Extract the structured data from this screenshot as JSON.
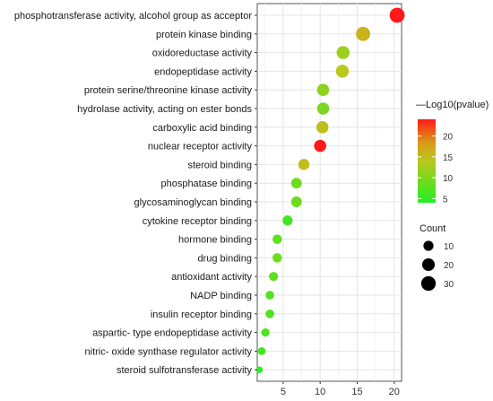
{
  "chart_data": {
    "type": "scatter",
    "xlabel": "",
    "ylabel": "",
    "xlim": [
      1.5,
      21
    ],
    "x_ticks": [
      "5",
      "10",
      "15",
      "20"
    ],
    "x_tick_values": [
      5,
      10,
      15,
      20
    ],
    "grid": true,
    "terms": [
      {
        "label": "phosphotransferase activity, alcohol group as acceptor",
        "rich_factor": 20.4,
        "count": 33,
        "log10p": 24
      },
      {
        "label": "protein kinase binding",
        "rich_factor": 15.8,
        "count": 28,
        "log10p": 16
      },
      {
        "label": "oxidoreductase activity",
        "rich_factor": 13.1,
        "count": 22,
        "log10p": 12
      },
      {
        "label": "endopeptidase activity",
        "rich_factor": 13.0,
        "count": 22,
        "log10p": 14
      },
      {
        "label": "protein serine/threonine kinase activity",
        "rich_factor": 10.4,
        "count": 18,
        "log10p": 11
      },
      {
        "label": "hydrolase activity, acting on ester bonds",
        "rich_factor": 10.4,
        "count": 18,
        "log10p": 10
      },
      {
        "label": "carboxylic acid binding",
        "rich_factor": 10.3,
        "count": 18,
        "log10p": 15
      },
      {
        "label": "nuclear receptor activity",
        "rich_factor": 10.0,
        "count": 18,
        "log10p": 24
      },
      {
        "label": "steroid binding",
        "rich_factor": 7.8,
        "count": 14,
        "log10p": 15
      },
      {
        "label": "phosphatase binding",
        "rich_factor": 6.8,
        "count": 12,
        "log10p": 9
      },
      {
        "label": "glycosaminoglycan binding",
        "rich_factor": 6.8,
        "count": 12,
        "log10p": 9
      },
      {
        "label": "cytokine receptor binding",
        "rich_factor": 5.6,
        "count": 10,
        "log10p": 6
      },
      {
        "label": "hormone binding",
        "rich_factor": 4.2,
        "count": 8,
        "log10p": 8
      },
      {
        "label": "drug binding",
        "rich_factor": 4.2,
        "count": 8,
        "log10p": 9
      },
      {
        "label": "antioxidant activity",
        "rich_factor": 3.7,
        "count": 7,
        "log10p": 8
      },
      {
        "label": "NADP binding",
        "rich_factor": 3.2,
        "count": 6,
        "log10p": 7
      },
      {
        "label": "insulin receptor binding",
        "rich_factor": 3.2,
        "count": 6,
        "log10p": 7
      },
      {
        "label": "aspartic- type endopeptidase activity",
        "rich_factor": 2.6,
        "count": 5,
        "log10p": 7
      },
      {
        "label": "nitric- oxide synthase regulator activity",
        "rich_factor": 2.1,
        "count": 4,
        "log10p": 6
      },
      {
        "label": "steroid sulfotransferase activity",
        "rich_factor": 1.8,
        "count": 2,
        "log10p": 5
      }
    ],
    "color_legend": {
      "title": "—Log10(pvalue)",
      "ticks": [
        "5",
        "10",
        "15",
        "20"
      ],
      "tick_values": [
        5,
        10,
        15,
        20
      ],
      "range": [
        4,
        24
      ],
      "color_low": "#22ee22",
      "color_high": "#ff1a1a",
      "placement": "right"
    },
    "size_legend": {
      "title": "Count",
      "values": [
        10,
        20,
        30
      ],
      "labels": [
        "10",
        "20",
        "30"
      ],
      "placement": "right"
    }
  }
}
